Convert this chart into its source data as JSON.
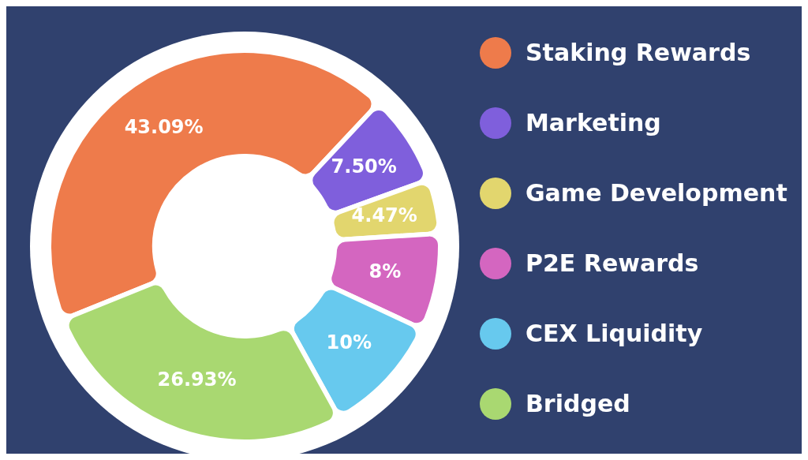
{
  "chart_data": {
    "type": "donut",
    "categories": [
      "Staking Rewards",
      "Marketing",
      "Game Development",
      "P2E Rewards",
      "CEX Liquidity",
      "Bridged"
    ],
    "values": [
      43.09,
      7.5,
      4.47,
      8,
      10,
      26.93
    ],
    "value_labels": [
      "43.09%",
      "7.50%",
      "4.47%",
      "8%",
      "10%",
      "26.93%"
    ],
    "colors": [
      "#ee7b4b",
      "#7f5fdc",
      "#e2d66e",
      "#d466c0",
      "#67c9ee",
      "#a9d871"
    ],
    "legend": "right"
  }
}
